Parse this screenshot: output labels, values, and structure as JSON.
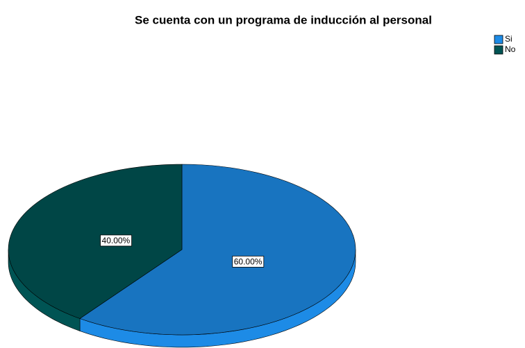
{
  "chart_data": {
    "type": "pie",
    "title": "Se cuenta con un programa de inducción al personal",
    "categories": [
      "Si",
      "No"
    ],
    "values": [
      60,
      40
    ],
    "value_labels": [
      "60.00%",
      "40.00%"
    ],
    "colors": [
      "#1874c0",
      "#004646"
    ],
    "legend": "top-right"
  }
}
